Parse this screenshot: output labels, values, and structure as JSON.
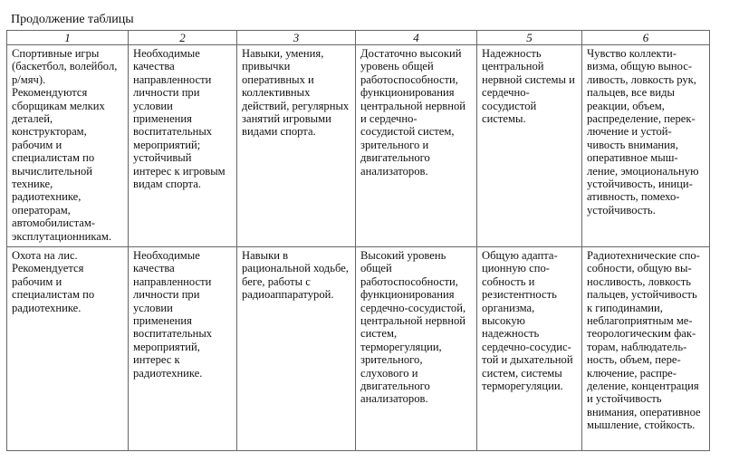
{
  "caption": "Продолжение таблицы",
  "headers": [
    "1",
    "2",
    "3",
    "4",
    "5",
    "6"
  ],
  "rows": [
    [
      "Спортивные игры\n(баскетбол, волейбол,\nр/мяч).\nРекомендуются\nсборщикам мелких\nдеталей,\nконструкторам,\nрабочим и\nспециалистам по\nвычислительной\nтехнике,\nрадиотехнике,\nоператорам,\nавтомобилистам-\nэксплутационникам.",
      "Необходимые\nкачества\nнаправленности\nличности при\nусловии\nприменения\nвоспитательных\nмероприятий;\nустойчивый\nинтерес к игровым\nвидам спорта.",
      "Навыки, умения,\nпривычки\nоперативных и\nколлективных\nдействий, регулярных\nзанятий игровыми\nвидами спорта.",
      "Достаточно высокий\nуровень общей\nработоспособности,\nфункционирования\nцентральной нервной\nи сердечно-\nсосудистой систем,\nзрительного и\nдвигательного\nанализаторов.",
      "Надежность\nцентральной\nнервной системы и\nсердечно-\nсосудистой\nсистемы.",
      "Чувство коллекти-\nвизма, общую вынос-\nливость, ловкость рук,\nпальцев, все виды\nреакции, объем,\nраспределение, перек-\nлючение и устой-\nчивость внимания,\nоперативное мыш-\nление, эмоциональную\nустойчивость, иници-\nативность, помехо-\nустойчивость."
    ],
    [
      "Охота на лис.\nРекомендуется\nрабочим и\nспециалистам по\nрадиотехнике.",
      "Необходимые\nкачества\nнаправленности\nличности при\nусловии\nприменения\nвоспитательных\nмероприятий,\nинтерес к\nрадиотехнике.",
      "Навыки в\nрациональной ходьбе,\nбеге, работы с\nрадиоаппаратурой.",
      "Высокий уровень\nобщей\nработоспособности,\nфункционирования\nсердечно-сосудистой,\nцентральной нервной\nсистем,\nтерморегуляции,\nзрительного,\nслухового и\nдвигательного\nанализаторов.",
      "Общую адапта-\nционную спо-\nсобность и\nрезистентность\nорганизма,\nвысокую\nнадежность\nсердечно-сосудис-\nтой и дыхательной\nсистем, системы\nтерморегуляции.",
      "Радиотехнические спо-\nсобности, общую вы-\nносливость, ловкость\nпальцев, устойчивость\nк гиподинамии,\nнеблагоприятным ме-\nтеорологическим фак-\nторам, наблюдатель-\nность, объем, пере-\nключение, распре-\nделение, концентрация\nи устойчивость\nвнимания, оперативное\nмышление, стойкость."
    ]
  ]
}
